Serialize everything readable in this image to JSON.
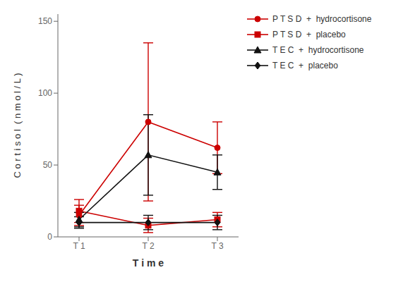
{
  "chart_data": {
    "type": "line",
    "categories": [
      "T 1",
      "T 2",
      "T 3"
    ],
    "series": [
      {
        "name": "P T S D  +  hydrocortisone",
        "color": "#cc0000",
        "marker": "circle",
        "line_style": "solid",
        "values": [
          15,
          80,
          62
        ],
        "errors": [
          7,
          55,
          18
        ]
      },
      {
        "name": "P T S D  +  placebo",
        "color": "#cc0000",
        "marker": "square",
        "line_style": "solid",
        "values": [
          18,
          8,
          12
        ],
        "errors": [
          8,
          5,
          5
        ]
      },
      {
        "name": "T E C  +  hydrocortisone",
        "color": "#111111",
        "marker": "triangle",
        "line_style": "solid",
        "values": [
          12,
          57,
          45
        ],
        "errors": [
          5,
          28,
          12
        ]
      },
      {
        "name": "T E C  +  placebo",
        "color": "#111111",
        "marker": "diamond",
        "line_style": "solid",
        "values": [
          10,
          10,
          10
        ],
        "errors": [
          4,
          5,
          5
        ]
      }
    ],
    "x_label": "T i m e",
    "y_label": "C o r t i s o l  ( n m o l / L )",
    "ylim": [
      0,
      155
    ],
    "yticks": [
      0,
      50,
      100,
      150
    ],
    "grid": false,
    "legend": "right"
  }
}
